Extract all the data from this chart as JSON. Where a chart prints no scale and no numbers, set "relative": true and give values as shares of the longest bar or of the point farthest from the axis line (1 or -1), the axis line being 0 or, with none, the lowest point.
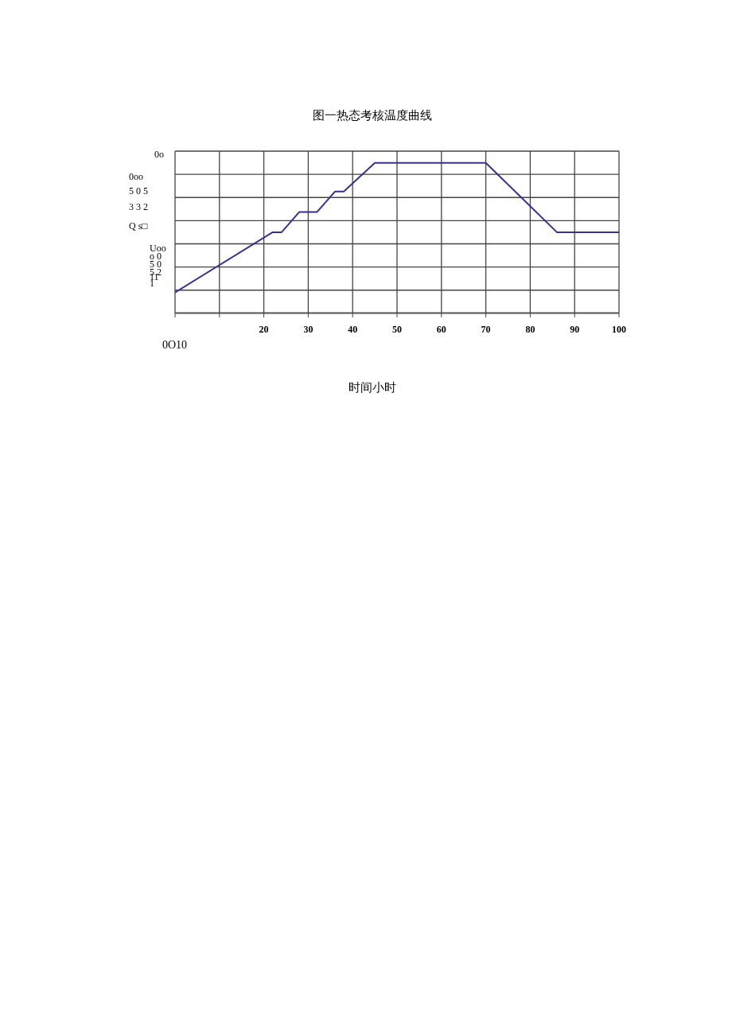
{
  "chart_data": {
    "type": "line",
    "title": "图一热态考核温度曲线",
    "xlabel": "时间小时",
    "relative": true,
    "x": [
      0,
      22,
      24,
      28,
      32,
      36,
      38,
      45,
      70,
      86,
      100
    ],
    "series": [
      {
        "color": "#33338f",
        "values": [
          0.135,
          0.537,
          0.537,
          0.672,
          0.672,
          0.808,
          0.808,
          1,
          1,
          0.537,
          0.537
        ]
      }
    ],
    "xlim": [
      0,
      100
    ],
    "xticks": [
      {
        "value": 0,
        "label": null
      },
      {
        "value": 10,
        "label": null
      },
      20,
      30,
      40,
      50,
      60,
      70,
      80,
      90,
      100
    ],
    "grid": true,
    "marker": "none",
    "line_style": "solid",
    "annotations": [
      "0o",
      "0oo",
      "5 0 5",
      "3 3 2",
      "Q s□",
      "Uoo",
      "o 0",
      "5 0",
      "5 2",
      "11",
      "1",
      "0O10"
    ]
  }
}
